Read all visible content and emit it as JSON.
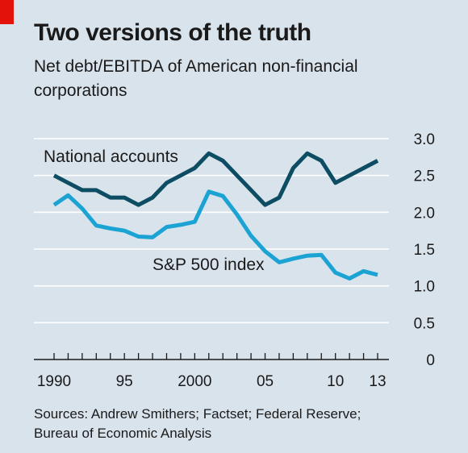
{
  "header": {
    "title": "Two versions of the truth",
    "subtitle": "Net debt/EBITDA of American non-financial corporations"
  },
  "footer": {
    "source": "Sources: Andrew Smithers; Factset; Federal Reserve; Bureau of Economic Analysis"
  },
  "colors": {
    "background": "#d9e3ec",
    "accent_red": "#e3120b",
    "national_accounts": "#0d4d63",
    "sp500": "#1ba3d4",
    "gridline": "#ffffff",
    "axis": "#1a1a1a"
  },
  "chart_data": {
    "type": "line",
    "title": "Two versions of the truth",
    "subtitle": "Net debt/EBITDA of American non-financial corporations",
    "xlabel": "",
    "ylabel": "",
    "xlim": [
      1990,
      2013
    ],
    "ylim": [
      0,
      3.0
    ],
    "y_ticks": [
      0,
      0.5,
      1.0,
      1.5,
      2.0,
      2.5,
      3.0
    ],
    "y_tick_labels": [
      "0",
      "0.5",
      "1.0",
      "1.5",
      "2.0",
      "2.5",
      "3.0"
    ],
    "y_axis_position": "right",
    "x_tick_labels": [
      {
        "x": 1990,
        "label": "1990"
      },
      {
        "x": 1995,
        "label": "95"
      },
      {
        "x": 2000,
        "label": "2000"
      },
      {
        "x": 2005,
        "label": "05"
      },
      {
        "x": 2010,
        "label": "10"
      },
      {
        "x": 2013,
        "label": "13"
      }
    ],
    "grid": true,
    "series": [
      {
        "name": "National accounts",
        "color": "#0d4d63",
        "x": [
          1990,
          1991,
          1992,
          1993,
          1994,
          1995,
          1996,
          1997,
          1998,
          1999,
          2000,
          2001,
          2002,
          2003,
          2004,
          2005,
          2006,
          2007,
          2008,
          2009,
          2010,
          2011,
          2012,
          2013
        ],
        "values": [
          2.5,
          2.4,
          2.3,
          2.3,
          2.2,
          2.2,
          2.1,
          2.2,
          2.4,
          2.5,
          2.6,
          2.8,
          2.7,
          2.5,
          2.3,
          2.1,
          2.2,
          2.6,
          2.8,
          2.7,
          2.4,
          2.5,
          2.6,
          2.7
        ]
      },
      {
        "name": "S&P 500 index",
        "color": "#1ba3d4",
        "x": [
          1990,
          1991,
          1992,
          1993,
          1994,
          1995,
          1996,
          1997,
          1998,
          1999,
          2000,
          2001,
          2002,
          2003,
          2004,
          2005,
          2006,
          2007,
          2008,
          2009,
          2010,
          2011,
          2012,
          2013
        ],
        "values": [
          2.1,
          2.23,
          2.05,
          1.82,
          1.78,
          1.75,
          1.67,
          1.66,
          1.8,
          1.83,
          1.87,
          2.28,
          2.22,
          1.97,
          1.68,
          1.47,
          1.32,
          1.37,
          1.41,
          1.42,
          1.18,
          1.1,
          1.2,
          1.15
        ]
      }
    ]
  }
}
